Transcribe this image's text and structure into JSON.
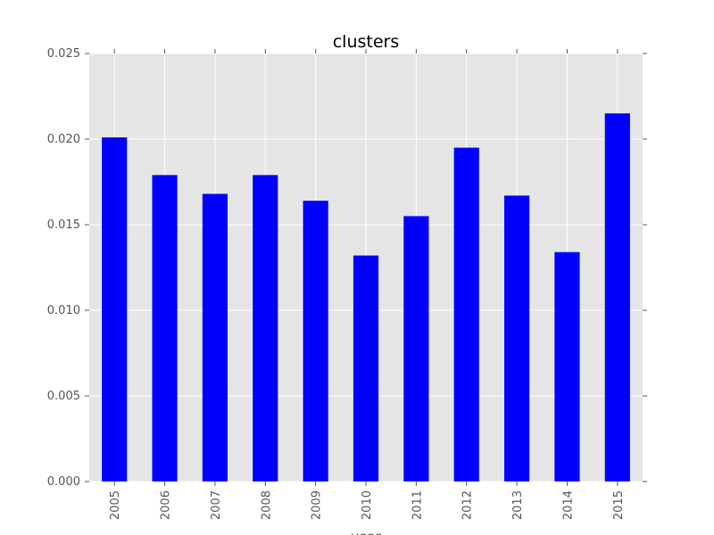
{
  "chart_data": {
    "type": "bar",
    "title": "clusters",
    "xlabel": "year",
    "ylabel": "",
    "categories": [
      "2005",
      "2006",
      "2007",
      "2008",
      "2009",
      "2010",
      "2011",
      "2012",
      "2013",
      "2014",
      "2015"
    ],
    "values": [
      0.0201,
      0.0179,
      0.0168,
      0.0179,
      0.0164,
      0.0132,
      0.0155,
      0.0195,
      0.0167,
      0.0134,
      0.0215
    ],
    "ylim": [
      0,
      0.025
    ],
    "yticks": [
      "0.000",
      "0.005",
      "0.010",
      "0.015",
      "0.020",
      "0.025"
    ],
    "ytick_values": [
      0,
      0.005,
      0.01,
      0.015,
      0.02,
      0.025
    ],
    "grid": true,
    "legend": "none",
    "colors": {
      "bar": "#0000ff",
      "plot_background": "#e5e5e5",
      "grid": "#ffffff",
      "text": "#555555"
    }
  }
}
